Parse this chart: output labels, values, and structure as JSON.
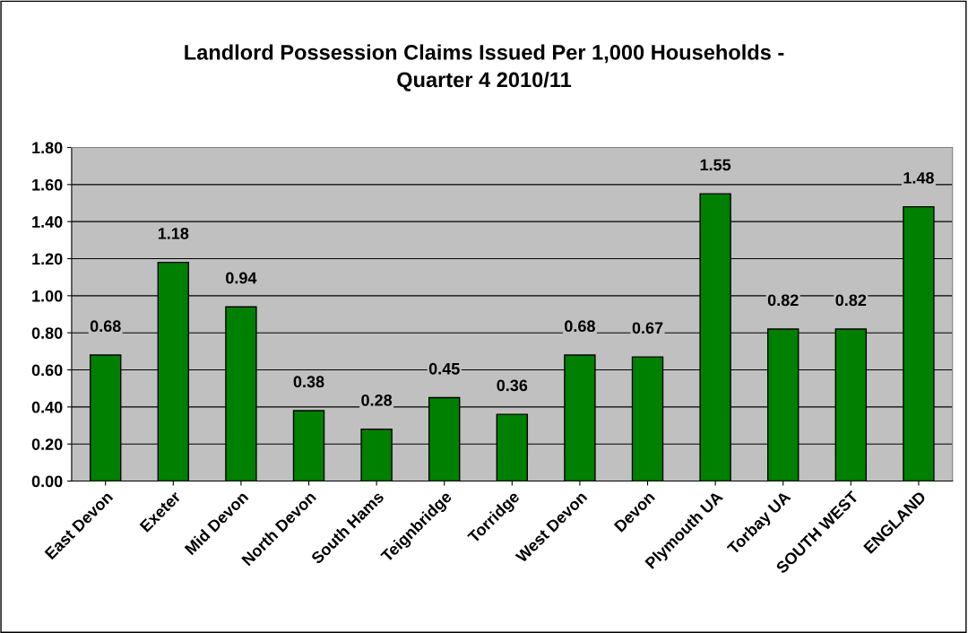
{
  "chart_data": {
    "type": "bar",
    "title": "Landlord Possession Claims Issued Per 1,000 Households -\nQuarter 4 2010/11",
    "categories": [
      "East Devon",
      "Exeter",
      "Mid Devon",
      "North Devon",
      "South Hams",
      "Teignbridge",
      "Torridge",
      "West Devon",
      "Devon",
      "Plymouth UA",
      "Torbay UA",
      "SOUTH WEST",
      "ENGLAND"
    ],
    "values": [
      0.68,
      1.18,
      0.94,
      0.38,
      0.28,
      0.45,
      0.36,
      0.68,
      0.67,
      1.55,
      0.82,
      0.82,
      1.48
    ],
    "color": "#008000",
    "ylim": [
      0,
      1.8
    ],
    "yticks": [
      {
        "value": 0,
        "label": "0.00"
      },
      {
        "value": 0.2,
        "label": "0.20"
      },
      {
        "value": 0.4,
        "label": "0.40"
      },
      {
        "value": 0.6,
        "label": "0.60"
      },
      {
        "value": 0.8,
        "label": "0.80"
      },
      {
        "value": 1.0,
        "label": "1.00"
      },
      {
        "value": 1.2,
        "label": "1.20"
      },
      {
        "value": 1.4,
        "label": "1.40"
      },
      {
        "value": 1.6,
        "label": "1.60"
      },
      {
        "value": 1.8,
        "label": "1.80"
      }
    ],
    "grid": "y",
    "data_labels": true
  }
}
